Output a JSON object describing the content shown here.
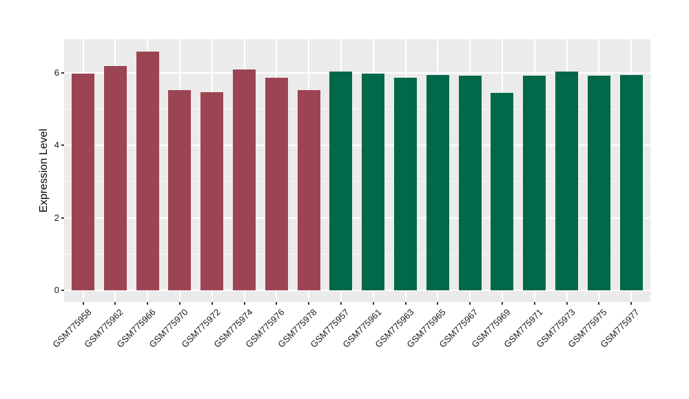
{
  "chart_data": {
    "type": "bar",
    "title": "",
    "xlabel": "",
    "ylabel": "Expression Level",
    "ylim": [
      0,
      6.93
    ],
    "yticks": [
      0,
      2,
      4,
      6
    ],
    "yminor_ticks": [
      1,
      3,
      5
    ],
    "grid": "major and minor horizontal white gridlines, vertical white gridlines at category centers",
    "legend_position": "none",
    "panel_background": "#EBEBEB",
    "gridline_color": "#FFFFFF",
    "tick_color": "#333333",
    "groups": [
      {
        "name": "group-1",
        "color": "#9C4452"
      },
      {
        "name": "group-2",
        "color": "#01684A"
      }
    ],
    "categories": [
      "GSM775958",
      "GSM775962",
      "GSM775966",
      "GSM775970",
      "GSM775972",
      "GSM775974",
      "GSM775976",
      "GSM775978",
      "GSM775957",
      "GSM775961",
      "GSM775963",
      "GSM775965",
      "GSM775967",
      "GSM775969",
      "GSM775971",
      "GSM775973",
      "GSM775975",
      "GSM775977"
    ],
    "values": [
      5.98,
      6.18,
      6.59,
      5.53,
      5.46,
      6.1,
      5.87,
      5.53,
      6.03,
      5.99,
      5.87,
      5.94,
      5.92,
      5.44,
      5.92,
      6.04,
      5.93,
      5.94
    ],
    "bar_group_index": [
      0,
      0,
      0,
      0,
      0,
      0,
      0,
      0,
      1,
      1,
      1,
      1,
      1,
      1,
      1,
      1,
      1,
      1
    ]
  }
}
